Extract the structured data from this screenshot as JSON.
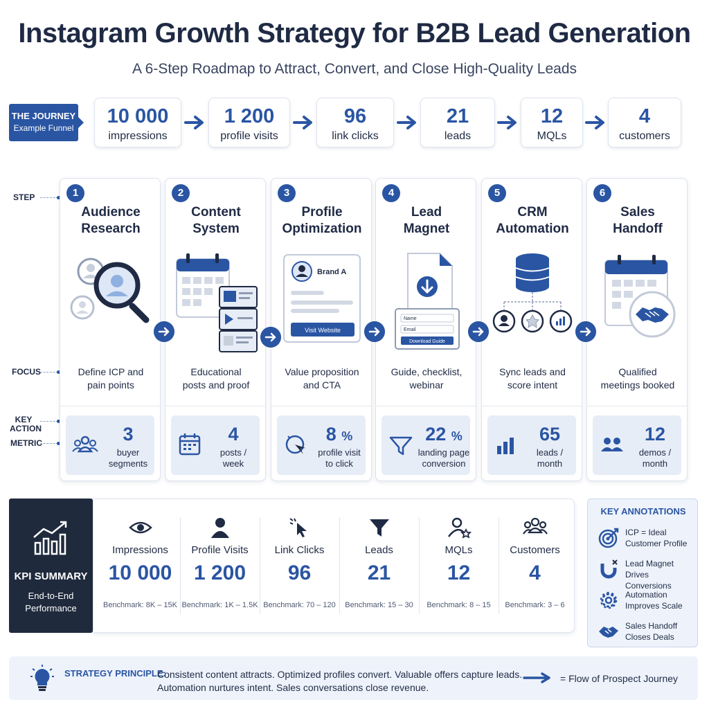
{
  "title": "Instagram Growth Strategy for B2B Lead Generation",
  "subtitle": "A 6-Step Roadmap to Attract, Convert, and Close High-Quality Leads",
  "journey": {
    "title": "THE JOURNEY",
    "subtitle": "Example Funnel"
  },
  "funnel": [
    {
      "value": "10 000",
      "label": "impressions"
    },
    {
      "value": "1 200",
      "label": "profile visits"
    },
    {
      "value": "96",
      "label": "link clicks"
    },
    {
      "value": "21",
      "label": "leads"
    },
    {
      "value": "12",
      "label": "MQLs"
    },
    {
      "value": "4",
      "label": "customers"
    }
  ],
  "row_labels": {
    "step": "STEP",
    "focus": "FOCUS",
    "key_action": "KEY ACTION",
    "metric": "METRIC"
  },
  "steps": [
    {
      "number": "1",
      "title_1": "Audience",
      "title_2": "Research",
      "focus_1": "Define ICP and",
      "focus_2": "pain points",
      "metric_value": "3",
      "metric_unit": "",
      "metric_label_1": "buyer",
      "metric_label_2": "segments",
      "icon": "people-icon"
    },
    {
      "number": "2",
      "title_1": "Content",
      "title_2": "System",
      "focus_1": "Educational",
      "focus_2": "posts and proof",
      "metric_value": "4",
      "metric_unit": "",
      "metric_label_1": "posts /",
      "metric_label_2": "week",
      "icon": "calendar-icon"
    },
    {
      "number": "3",
      "title_1": "Profile",
      "title_2": "Optimization",
      "focus_1": "Value proposition",
      "focus_2": "and CTA",
      "metric_value": "8",
      "metric_unit": "%",
      "metric_label_1": "profile visit",
      "metric_label_2": "to click",
      "icon": "click-icon"
    },
    {
      "number": "4",
      "title_1": "Lead",
      "title_2": "Magnet",
      "focus_1": "Guide, checklist,",
      "focus_2": "webinar",
      "metric_value": "22",
      "metric_unit": "%",
      "metric_label_1": "landing page",
      "metric_label_2": "conversion",
      "icon": "funnel-icon"
    },
    {
      "number": "5",
      "title_1": "CRM",
      "title_2": "Automation",
      "focus_1": "Sync leads and",
      "focus_2": "score intent",
      "metric_value": "65",
      "metric_unit": "",
      "metric_label_1": "leads /",
      "metric_label_2": "month",
      "icon": "bar-chart-icon"
    },
    {
      "number": "6",
      "title_1": "Sales",
      "title_2": "Handoff",
      "focus_1": "Qualified",
      "focus_2": "meetings booked",
      "metric_value": "12",
      "metric_unit": "",
      "metric_label_1": "demos /",
      "metric_label_2": "month",
      "icon": "team-icon"
    }
  ],
  "profile_card": {
    "brand": "Brand A",
    "button": "Visit Website"
  },
  "lead_form": {
    "name": "Name",
    "email": "Email",
    "button": "Download Guide"
  },
  "kpi": {
    "title": "KPI SUMMARY",
    "subtitle_1": "End-to-End",
    "subtitle_2": "Performance",
    "items": [
      {
        "label": "Impressions",
        "value": "10 000",
        "benchmark": "Benchmark: 8K – 15K",
        "icon": "eye-icon"
      },
      {
        "label": "Profile Visits",
        "value": "1 200",
        "benchmark": "Benchmark: 1K – 1.5K",
        "icon": "user-icon"
      },
      {
        "label": "Link Clicks",
        "value": "96",
        "benchmark": "Benchmark: 70 – 120",
        "icon": "cursor-icon"
      },
      {
        "label": "Leads",
        "value": "21",
        "benchmark": "Benchmark: 15 – 30",
        "icon": "funnel-icon"
      },
      {
        "label": "MQLs",
        "value": "12",
        "benchmark": "Benchmark: 8 – 15",
        "icon": "user-star-icon"
      },
      {
        "label": "Customers",
        "value": "4",
        "benchmark": "Benchmark: 3 – 6",
        "icon": "group-icon"
      }
    ]
  },
  "annotations": {
    "title": "KEY ANNOTATIONS",
    "items": [
      {
        "line_1": "ICP = Ideal",
        "line_2": "Customer Profile",
        "icon": "target-icon"
      },
      {
        "line_1": "Lead Magnet",
        "line_2": "Drives Conversions",
        "icon": "magnet-icon"
      },
      {
        "line_1": "Automation",
        "line_2": "Improves Scale",
        "icon": "gear-icon"
      },
      {
        "line_1": "Sales Handoff",
        "line_2": "Closes Deals",
        "icon": "handshake-icon"
      }
    ]
  },
  "principle": {
    "label": "STRATEGY PRINCIPLE:",
    "text_1": "Consistent content attracts. Optimized profiles convert. Valuable offers capture leads.",
    "text_2": "Automation nurtures intent. Sales conversations close revenue.",
    "legend": "= Flow of Prospect Journey"
  },
  "colors": {
    "primary": "#2a55a3",
    "navy": "#1f2a44",
    "dark_panel": "#1f2a3d",
    "light_panel": "#e7edf7"
  }
}
